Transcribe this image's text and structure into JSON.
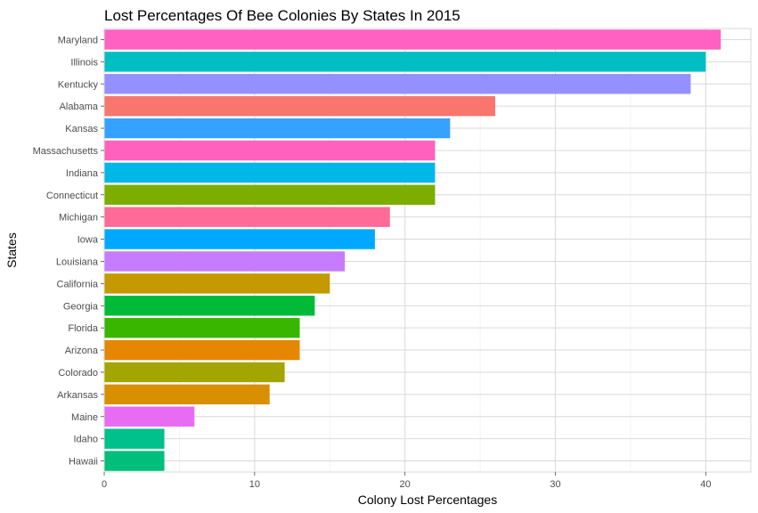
{
  "chart_data": {
    "type": "bar",
    "orientation": "horizontal",
    "title": "Lost Percentages Of Bee Colonies By States In 2015",
    "xlabel": "Colony Lost Percentages",
    "ylabel": "States",
    "xlim": [
      0,
      43
    ],
    "x_ticks": [
      0,
      10,
      20,
      30,
      40
    ],
    "grid": true,
    "legend": "none",
    "categories": [
      "Maryland",
      "Illinois",
      "Kentucky",
      "Alabama",
      "Kansas",
      "Massachusetts",
      "Indiana",
      "Connecticut",
      "Michigan",
      "Iowa",
      "Louisiana",
      "California",
      "Georgia",
      "Florida",
      "Arizona",
      "Colorado",
      "Arkansas",
      "Maine",
      "Idaho",
      "Hawaii"
    ],
    "values": [
      41,
      40,
      39,
      26,
      23,
      22,
      22,
      22,
      19,
      18,
      16,
      15,
      14,
      13,
      13,
      12,
      11,
      6,
      4,
      4
    ],
    "colors": [
      "#FF61C3",
      "#00BFC4",
      "#9590FF",
      "#F8766D",
      "#35A2FF",
      "#FF62BC",
      "#00B8E7",
      "#7CAE00",
      "#FF6A98",
      "#00A9FF",
      "#C77CFF",
      "#C49A00",
      "#00BA38",
      "#39B600",
      "#E58700",
      "#A3A500",
      "#D89000",
      "#E76BF3",
      "#00C08B",
      "#00BF7D"
    ]
  }
}
